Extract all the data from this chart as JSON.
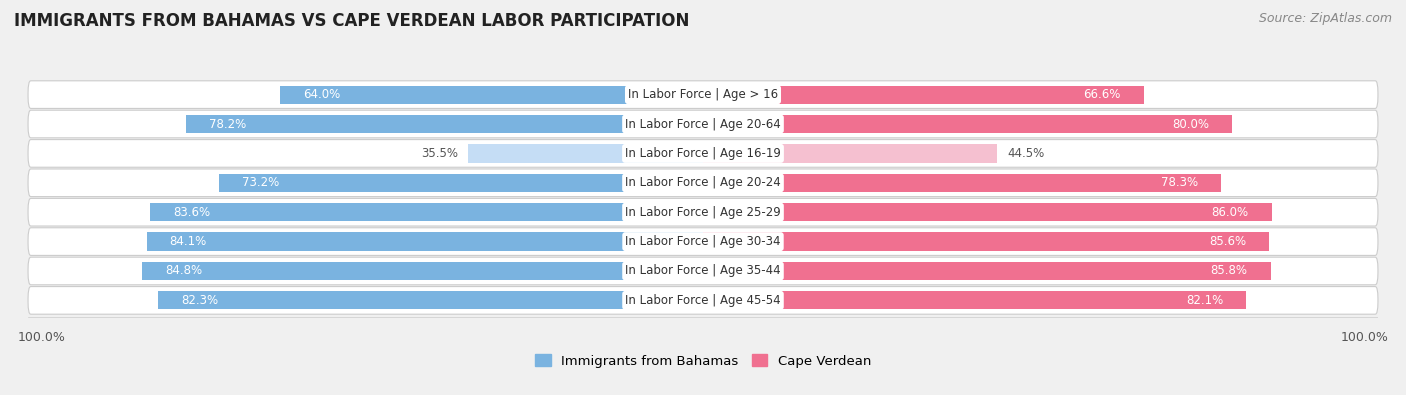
{
  "title": "IMMIGRANTS FROM BAHAMAS VS CAPE VERDEAN LABOR PARTICIPATION",
  "source": "Source: ZipAtlas.com",
  "categories": [
    "In Labor Force | Age > 16",
    "In Labor Force | Age 20-64",
    "In Labor Force | Age 16-19",
    "In Labor Force | Age 20-24",
    "In Labor Force | Age 25-29",
    "In Labor Force | Age 30-34",
    "In Labor Force | Age 35-44",
    "In Labor Force | Age 45-54"
  ],
  "bahamas_values": [
    64.0,
    78.2,
    35.5,
    73.2,
    83.6,
    84.1,
    84.8,
    82.3
  ],
  "capeverdean_values": [
    66.6,
    80.0,
    44.5,
    78.3,
    86.0,
    85.6,
    85.8,
    82.1
  ],
  "bahamas_color": "#7ab3e0",
  "capeverdean_color": "#f07090",
  "bahamas_color_light": "#c5ddf5",
  "capeverdean_color_light": "#f5c0d0",
  "bar_height": 0.62,
  "background_color": "#f0f0f0",
  "row_bg_even": "#f8f8f8",
  "row_bg_odd": "#ebebeb",
  "xlim": 100.0,
  "legend_bahamas": "Immigrants from Bahamas",
  "legend_capeverdean": "Cape Verdean",
  "title_fontsize": 12,
  "source_fontsize": 9,
  "label_fontsize": 8.5,
  "value_fontsize": 8.5
}
